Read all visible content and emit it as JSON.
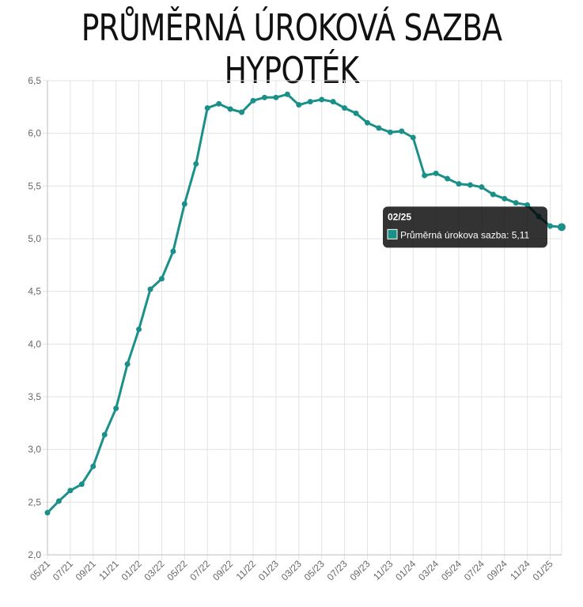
{
  "title": "PRŮMĚRNÁ ÚROKOVÁ SAZBA HYPOTÉK",
  "chart_data": {
    "type": "line",
    "title": "PRŮMĚRNÁ ÚROKOVÁ SAZBA HYPOTÉK",
    "xlabel": "",
    "ylabel": "",
    "ylim": [
      2.0,
      6.5
    ],
    "y_ticks": [
      "2,0",
      "2,5",
      "3,0",
      "3,5",
      "4,0",
      "4,5",
      "5,0",
      "5,5",
      "6,0",
      "6,5"
    ],
    "grid": true,
    "x": [
      "05/21",
      "06/21",
      "07/21",
      "08/21",
      "09/21",
      "10/21",
      "11/21",
      "12/21",
      "01/22",
      "02/22",
      "03/22",
      "04/22",
      "05/22",
      "06/22",
      "07/22",
      "08/22",
      "09/22",
      "10/22",
      "11/22",
      "12/22",
      "01/23",
      "02/23",
      "03/23",
      "04/23",
      "05/23",
      "06/23",
      "07/23",
      "08/23",
      "09/23",
      "10/23",
      "11/23",
      "12/23",
      "01/24",
      "02/24",
      "03/24",
      "04/24",
      "05/24",
      "06/24",
      "07/24",
      "08/24",
      "09/24",
      "10/24",
      "11/24",
      "12/24",
      "01/25",
      "02/25"
    ],
    "x_tick_labels": [
      "05/21",
      "07/21",
      "09/21",
      "11/21",
      "01/22",
      "03/22",
      "05/22",
      "07/22",
      "09/22",
      "11/22",
      "01/23",
      "03/23",
      "05/23",
      "07/23",
      "09/23",
      "11/23",
      "01/24",
      "03/24",
      "05/24",
      "07/24",
      "09/24",
      "11/24",
      "01/25"
    ],
    "series": [
      {
        "name": "Průměrná úrokova sazba",
        "color": "#1a9088",
        "values": [
          2.4,
          2.51,
          2.61,
          2.67,
          2.84,
          3.14,
          3.39,
          3.81,
          4.14,
          4.52,
          4.62,
          4.88,
          5.33,
          5.71,
          6.24,
          6.28,
          6.23,
          6.2,
          6.31,
          6.34,
          6.34,
          6.37,
          6.27,
          6.3,
          6.32,
          6.3,
          6.24,
          6.19,
          6.1,
          6.05,
          6.01,
          6.02,
          5.96,
          5.6,
          5.62,
          5.57,
          5.52,
          5.51,
          5.49,
          5.42,
          5.38,
          5.34,
          5.32,
          5.21,
          5.12,
          5.11
        ]
      }
    ],
    "tooltip": {
      "title": "02/25",
      "label": "Průměrná úrokova sazba: 5,11",
      "color": "#1a9088"
    }
  }
}
